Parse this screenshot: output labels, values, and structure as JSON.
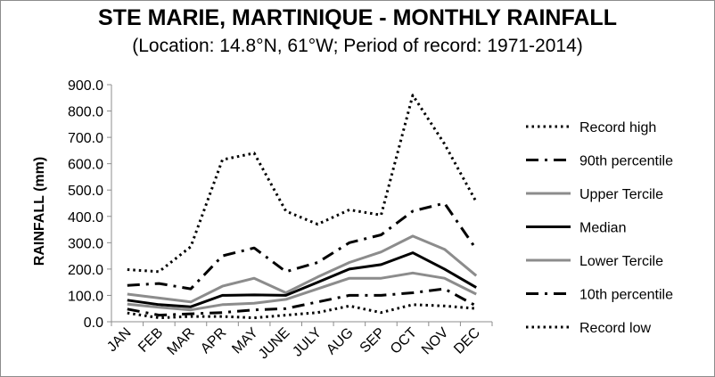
{
  "chart_data": {
    "type": "line",
    "title": "STE MARIE, MARTINIQUE - MONTHLY RAINFALL",
    "subtitle": "(Location: 14.8°N, 61°W; Period of record: 1971-2014)",
    "ylabel": "RAINFALL (mm)",
    "xlabel": "",
    "ylim": [
      0,
      900
    ],
    "ytick_step": 100,
    "ytick_labels": [
      "0.0",
      "100.0",
      "200.0",
      "300.0",
      "400.0",
      "500.0",
      "600.0",
      "700.0",
      "800.0",
      "900.0"
    ],
    "grid": false,
    "legend_position": "right",
    "categories": [
      "JAN",
      "FEB",
      "MAR",
      "APR",
      "MAY",
      "JUNE",
      "JULY",
      "AUG",
      "SEP",
      "OCT",
      "NOV",
      "DEC"
    ],
    "series": [
      {
        "name": "Record high",
        "style": "dotted",
        "color": "#000000",
        "width": 3,
        "values": [
          198,
          190,
          285,
          615,
          640,
          420,
          370,
          425,
          405,
          860,
          675,
          455
        ]
      },
      {
        "name": "90th percentile",
        "style": "dashdot",
        "color": "#000000",
        "width": 3,
        "values": [
          138,
          145,
          125,
          250,
          280,
          190,
          225,
          300,
          330,
          420,
          450,
          275
        ]
      },
      {
        "name": "Upper Tercile",
        "style": "solid",
        "color": "#8c8c8c",
        "width": 3,
        "values": [
          105,
          90,
          75,
          135,
          165,
          110,
          170,
          225,
          265,
          325,
          275,
          175
        ]
      },
      {
        "name": "Median",
        "style": "solid",
        "color": "#000000",
        "width": 3,
        "values": [
          82,
          65,
          57,
          100,
          102,
          100,
          150,
          200,
          217,
          262,
          200,
          130
        ]
      },
      {
        "name": "Lower Tercile",
        "style": "solid",
        "color": "#8c8c8c",
        "width": 3,
        "values": [
          67,
          55,
          45,
          65,
          70,
          85,
          125,
          165,
          165,
          185,
          165,
          105
        ]
      },
      {
        "name": "10th percentile",
        "style": "dashdot",
        "color": "#000000",
        "width": 3,
        "values": [
          48,
          25,
          30,
          35,
          45,
          50,
          75,
          100,
          100,
          110,
          125,
          60
        ]
      },
      {
        "name": "Record low",
        "style": "dotted",
        "color": "#000000",
        "width": 3,
        "values": [
          33,
          15,
          20,
          20,
          15,
          25,
          35,
          60,
          35,
          65,
          60,
          50
        ]
      }
    ]
  }
}
